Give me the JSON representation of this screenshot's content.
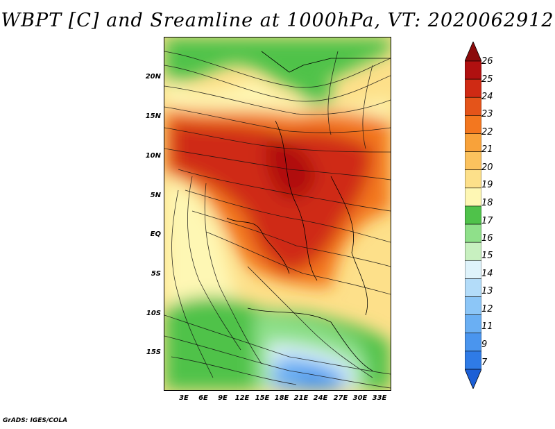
{
  "title": "WBPT [C] and Sreamline at 1000hPa, VT: 2020062912",
  "map": {
    "y_axis_labels": [
      "20N",
      "15N",
      "10N",
      "5N",
      "EQ",
      "5S",
      "10S",
      "15S"
    ],
    "x_axis_labels": [
      "3E",
      "6E",
      "9E",
      "12E",
      "15E",
      "18E",
      "21E",
      "24E",
      "27E",
      "30E",
      "33E"
    ]
  },
  "colorbar": {
    "unit": "C",
    "levels": [
      "7",
      "9",
      "11",
      "12",
      "13",
      "14",
      "15",
      "16",
      "17",
      "18",
      "19",
      "20",
      "21",
      "22",
      "23",
      "24",
      "25",
      "26"
    ],
    "colors": [
      "#1c5fd6",
      "#2f7be6",
      "#4a95ee",
      "#6aaff3",
      "#8cc6f7",
      "#b3dcf9",
      "#dff3fb",
      "#c8f0c0",
      "#8fe08a",
      "#4fc24a",
      "#fef7b4",
      "#fde08a",
      "#fbc25e",
      "#f8a23a",
      "#f3771f",
      "#e4541a",
      "#cf2a14",
      "#b01010",
      "#8b0a0a"
    ]
  },
  "credit": "GrADS: IGES/COLA"
}
